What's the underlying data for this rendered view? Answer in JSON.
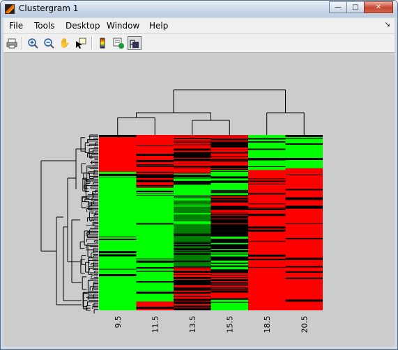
{
  "window": {
    "title": "Clustergram 1"
  },
  "menu": {
    "items": [
      "File",
      "Tools",
      "Desktop",
      "Window",
      "Help"
    ]
  },
  "toolbar": {
    "icons": [
      "print-icon",
      "zoom-in-icon",
      "zoom-out-icon",
      "pan-hand-icon",
      "data-cursor-icon",
      "colorbar-icon",
      "export-workspace-icon",
      "dendrogram-toggle-icon"
    ]
  },
  "heatmap": {
    "column_labels": [
      "9.5",
      "11.5",
      "13.5",
      "15.5",
      "18.5",
      "20.5"
    ],
    "colors": {
      "red": "#ff0000",
      "green": "#00ff00",
      "black": "#000000",
      "dark_green": "#008000"
    }
  }
}
